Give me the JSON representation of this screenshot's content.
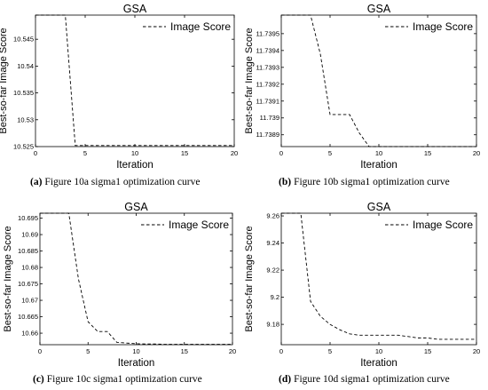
{
  "chart_data": [
    {
      "type": "line",
      "title": "GSA",
      "xlabel": "Iteration",
      "ylabel": "Best-so-far Image Score",
      "xlim": [
        0,
        20
      ],
      "ylim": [
        10.525,
        10.5495
      ],
      "x_ticks": [
        "0",
        "5",
        "10",
        "15",
        "20"
      ],
      "y_ticks": [
        "10.525",
        "10.53",
        "10.535",
        "10.54",
        "10.545"
      ],
      "y_tick_values": [
        10.525,
        10.53,
        10.535,
        10.54,
        10.545
      ],
      "legend": "Image Score",
      "legend_position": "top-right",
      "caption_label": "(a)",
      "caption_text": "Figure 10a sigma1 optimization curve",
      "series": [
        {
          "name": "Image Score",
          "x": [
            0,
            1,
            2,
            3,
            4,
            5,
            6,
            7,
            8,
            9,
            10,
            11,
            12,
            13,
            14,
            15,
            16,
            17,
            18,
            19,
            20
          ],
          "y": [
            10.5495,
            10.5495,
            10.5495,
            10.5495,
            10.5252,
            10.5252,
            10.5252,
            10.5252,
            10.5252,
            10.5252,
            10.5252,
            10.5252,
            10.5252,
            10.5252,
            10.5252,
            10.5252,
            10.5252,
            10.5252,
            10.5252,
            10.5252,
            10.5252
          ]
        }
      ]
    },
    {
      "type": "line",
      "title": "GSA",
      "xlabel": "Iteration",
      "ylabel": "Best-so-far Image Score",
      "xlim": [
        0,
        20
      ],
      "ylim": [
        11.73883,
        11.73961
      ],
      "x_ticks": [
        "0",
        "5",
        "10",
        "15",
        "20"
      ],
      "y_ticks": [
        "11.7389",
        "11.739",
        "11.7391",
        "11.7392",
        "11.7393",
        "11.7394",
        "11.7395"
      ],
      "y_tick_values": [
        11.7389,
        11.739,
        11.7391,
        11.7392,
        11.7393,
        11.7394,
        11.7395
      ],
      "legend": "Image Score",
      "legend_position": "top-right",
      "caption_label": "(b)",
      "caption_text": "Figure 10b sigma1 optimization curve",
      "series": [
        {
          "name": "Image Score",
          "x": [
            0,
            1,
            2,
            3,
            4,
            5,
            6,
            7,
            8,
            9,
            10,
            11,
            12,
            13,
            14,
            15,
            16,
            17,
            18,
            19,
            20
          ],
          "y": [
            11.73961,
            11.73961,
            11.73961,
            11.73961,
            11.73938,
            11.73902,
            11.73902,
            11.73902,
            11.73891,
            11.73883,
            11.73883,
            11.73883,
            11.73883,
            11.73883,
            11.73883,
            11.73883,
            11.73883,
            11.73883,
            11.73883,
            11.73883,
            11.73883
          ]
        }
      ]
    },
    {
      "type": "line",
      "title": "GSA",
      "xlabel": "Iteration",
      "ylabel": "Best-so-far Image Score",
      "xlim": [
        0,
        20
      ],
      "ylim": [
        10.6565,
        10.6965
      ],
      "x_ticks": [
        "0",
        "5",
        "10",
        "15",
        "20"
      ],
      "y_ticks": [
        "10.66",
        "10.665",
        "10.67",
        "10.675",
        "10.68",
        "10.685",
        "10.69",
        "10.695"
      ],
      "y_tick_values": [
        10.66,
        10.665,
        10.67,
        10.675,
        10.68,
        10.685,
        10.69,
        10.695
      ],
      "legend": "Image Score",
      "legend_position": "top-right",
      "caption_label": "(c)",
      "caption_text": "Figure 10c sigma1 optimization curve",
      "series": [
        {
          "name": "Image Score",
          "x": [
            0,
            1,
            2,
            3,
            4,
            5,
            6,
            7,
            8,
            9,
            10,
            11,
            12,
            13,
            14,
            15,
            16,
            17,
            18,
            19,
            20
          ],
          "y": [
            10.6965,
            10.6965,
            10.6965,
            10.6965,
            10.6765,
            10.6635,
            10.6605,
            10.6605,
            10.6572,
            10.657,
            10.6568,
            10.6567,
            10.6567,
            10.6566,
            10.6566,
            10.6566,
            10.6566,
            10.6566,
            10.6566,
            10.6566,
            10.6566
          ]
        }
      ]
    },
    {
      "type": "line",
      "title": "GSA",
      "xlabel": "Iteration",
      "ylabel": "Best-so-far Image Score",
      "xlim": [
        0,
        20
      ],
      "ylim": [
        9.165,
        9.262
      ],
      "x_ticks": [
        "0",
        "5",
        "10",
        "15",
        "20"
      ],
      "y_ticks": [
        "9.18",
        "9.2",
        "9.22",
        "9.24",
        "9.26"
      ],
      "y_tick_values": [
        9.18,
        9.2,
        9.22,
        9.24,
        9.26
      ],
      "legend": "Image Score",
      "legend_position": "top-right",
      "caption_label": "(d)",
      "caption_text": "Figure 10d sigma1 optimization curve",
      "series": [
        {
          "name": "Image Score",
          "x": [
            0,
            1,
            2,
            3,
            4,
            5,
            6,
            7,
            8,
            9,
            10,
            11,
            12,
            13,
            14,
            15,
            16,
            17,
            18,
            19,
            20
          ],
          "y": [
            9.262,
            9.262,
            9.262,
            9.197,
            9.186,
            9.18,
            9.176,
            9.173,
            9.172,
            9.172,
            9.172,
            9.172,
            9.172,
            9.171,
            9.17,
            9.17,
            9.169,
            9.169,
            9.169,
            9.169,
            9.169
          ]
        }
      ]
    }
  ]
}
